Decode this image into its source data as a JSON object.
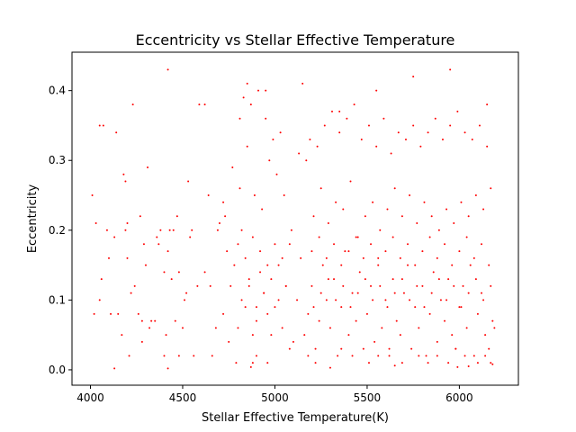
{
  "chart_data": {
    "type": "scatter",
    "title": "Eccentricity vs Stellar Effective Temperature",
    "xlabel": "Stellar Effective Temperature(K)",
    "ylabel": "Eccentricity",
    "xlim": [
      3900,
      6320
    ],
    "ylim": [
      -0.022,
      0.455
    ],
    "xticks": [
      4000,
      4500,
      5000,
      5500,
      6000
    ],
    "yticks": [
      0.0,
      0.1,
      0.2,
      0.3,
      0.4
    ],
    "xtick_labels": [
      "4000",
      "4500",
      "5000",
      "5500",
      "6000"
    ],
    "ytick_labels": [
      "0.0",
      "0.1",
      "0.2",
      "0.3",
      "0.4"
    ],
    "grid": false,
    "marker_color": "#ff0000",
    "series": [
      {
        "x": [
          4020,
          4050,
          4060,
          4090,
          4110,
          4130,
          4150,
          4170,
          4190,
          4200,
          4220,
          4240,
          4260,
          4280,
          4300,
          4320,
          4350,
          4380,
          4400,
          4410,
          4420,
          4440,
          4460,
          4480,
          4500,
          4520,
          4540,
          4560,
          4580,
          4620,
          4650,
          4680,
          4700,
          4720,
          4740,
          4760,
          4780,
          4800,
          4820,
          4840,
          4860,
          4880,
          4900,
          4920,
          4940,
          4960,
          4980,
          5000,
          5020,
          5040,
          5060,
          5080,
          5100,
          5120,
          5140,
          5160,
          5180,
          5200,
          5220,
          5240,
          5260,
          5280,
          5300,
          5320,
          5340,
          5360,
          5380,
          5400,
          5420,
          5440,
          5460,
          5480,
          5500,
          5520,
          5540,
          5560,
          5580,
          5600,
          5620,
          5640,
          5660,
          5680,
          5700,
          5720,
          5740,
          5760,
          5780,
          5800,
          5820,
          5840,
          5860,
          5880,
          5900,
          5920,
          5940,
          5960,
          5980,
          6000,
          6020,
          6040,
          6060,
          6080,
          6100,
          6120,
          6140,
          6160,
          6180,
          6190,
          4030,
          4070,
          4140,
          4180,
          4230,
          4270,
          4310,
          4360,
          4430,
          4470,
          4530,
          4590,
          4640,
          4690,
          4730,
          4770,
          4810,
          4850,
          4890,
          4930,
          4970,
          5010,
          5050,
          5090,
          5130,
          5170,
          5210,
          5250,
          5290,
          5330,
          5370,
          5410,
          5450,
          5490,
          5530,
          5570,
          5610,
          5650,
          5690,
          5730,
          5770,
          5810,
          5850,
          5890,
          5930,
          5970,
          6010,
          6050,
          6090,
          6130,
          6170,
          4810,
          4830,
          4870,
          4910,
          4950,
          4990,
          5030,
          5190,
          5230,
          5270,
          5310,
          5350,
          5390,
          5430,
          5470,
          5510,
          5550,
          5590,
          5630,
          5670,
          5710,
          5750,
          5790,
          5830,
          5870,
          5910,
          5950,
          5990,
          6030,
          6070,
          6110,
          6150,
          4800,
          4840,
          4880,
          4920,
          4960,
          5000,
          5040,
          5200,
          5240,
          5280,
          5320,
          5360,
          5400,
          5440,
          5480,
          5520,
          5560,
          5600,
          5640,
          5680,
          5720,
          5760,
          5800,
          5840,
          5880,
          5920,
          5960,
          6000,
          6040,
          6080,
          6120,
          6160,
          4820,
          4860,
          4900,
          4940,
          4980,
          5020,
          5060,
          5210,
          5250,
          5290,
          5330,
          5370,
          5410,
          5450,
          5490,
          5530,
          5570,
          5610,
          5650,
          5690,
          5730,
          5770,
          5810,
          5850,
          5890,
          5930,
          5970,
          6010,
          6050,
          6090,
          6130,
          6170,
          4010,
          4100,
          4200,
          4290,
          4370,
          4450,
          4550,
          4620,
          4720,
          4850,
          4950,
          5150,
          5350,
          5550,
          5750,
          5950,
          6150,
          4420,
          4880,
          5300,
          5650,
          5990,
          6050,
          6180,
          4420,
          4130,
          4050,
          4210,
          4190,
          4280,
          4330,
          4400,
          4480,
          4510,
          4660,
          4750,
          4790,
          4870,
          4900,
          4960,
          5080,
          5180,
          5220,
          5360,
          5420,
          5510,
          5560,
          5620,
          5690,
          5780,
          5830,
          5880,
          5940,
          5980,
          6030,
          6100,
          6140,
          6170
        ],
        "y": [
          0.08,
          0.1,
          0.13,
          0.2,
          0.08,
          0.19,
          0.08,
          0.05,
          0.2,
          0.21,
          0.11,
          0.12,
          0.08,
          0.07,
          0.15,
          0.06,
          0.07,
          0.2,
          0.14,
          0.05,
          0.17,
          0.13,
          0.07,
          0.14,
          0.06,
          0.11,
          0.19,
          0.02,
          0.12,
          0.14,
          0.12,
          0.06,
          0.21,
          0.08,
          0.17,
          0.12,
          0.15,
          0.06,
          0.2,
          0.09,
          0.13,
          0.05,
          0.07,
          0.14,
          0.11,
          0.08,
          0.05,
          0.09,
          0.15,
          0.06,
          0.12,
          0.18,
          0.04,
          0.1,
          0.16,
          0.05,
          0.08,
          0.12,
          0.03,
          0.07,
          0.15,
          0.1,
          0.06,
          0.13,
          0.02,
          0.09,
          0.17,
          0.05,
          0.11,
          0.07,
          0.14,
          0.03,
          0.08,
          0.12,
          0.04,
          0.16,
          0.06,
          0.1,
          0.02,
          0.13,
          0.07,
          0.05,
          0.11,
          0.15,
          0.03,
          0.09,
          0.06,
          0.12,
          0.02,
          0.08,
          0.14,
          0.04,
          0.1,
          0.07,
          0.13,
          0.05,
          0.03,
          0.09,
          0.12,
          0.06,
          0.15,
          0.02,
          0.08,
          0.11,
          0.05,
          0.03,
          0.07,
          0.06,
          0.21,
          0.35,
          0.34,
          0.28,
          0.38,
          0.22,
          0.29,
          0.19,
          0.2,
          0.22,
          0.27,
          0.38,
          0.25,
          0.2,
          0.22,
          0.29,
          0.26,
          0.32,
          0.25,
          0.23,
          0.3,
          0.28,
          0.25,
          0.2,
          0.31,
          0.3,
          0.22,
          0.26,
          0.21,
          0.24,
          0.23,
          0.27,
          0.19,
          0.22,
          0.24,
          0.2,
          0.23,
          0.26,
          0.22,
          0.25,
          0.21,
          0.24,
          0.22,
          0.2,
          0.23,
          0.21,
          0.24,
          0.22,
          0.25,
          0.23,
          0.26,
          0.36,
          0.39,
          0.38,
          0.4,
          0.36,
          0.33,
          0.34,
          0.33,
          0.32,
          0.35,
          0.37,
          0.34,
          0.36,
          0.38,
          0.33,
          0.35,
          0.32,
          0.36,
          0.31,
          0.34,
          0.33,
          0.35,
          0.32,
          0.34,
          0.36,
          0.33,
          0.35,
          0.37,
          0.34,
          0.33,
          0.35,
          0.32,
          0.18,
          0.16,
          0.19,
          0.17,
          0.15,
          0.18,
          0.16,
          0.17,
          0.19,
          0.16,
          0.18,
          0.15,
          0.17,
          0.19,
          0.16,
          0.18,
          0.15,
          0.17,
          0.19,
          0.16,
          0.18,
          0.15,
          0.17,
          0.19,
          0.16,
          0.18,
          0.15,
          0.17,
          0.19,
          0.16,
          0.18,
          0.15,
          0.1,
          0.12,
          0.09,
          0.11,
          0.13,
          0.1,
          0.12,
          0.09,
          0.11,
          0.13,
          0.1,
          0.12,
          0.09,
          0.11,
          0.13,
          0.1,
          0.12,
          0.09,
          0.11,
          0.13,
          0.1,
          0.12,
          0.09,
          0.11,
          0.13,
          0.1,
          0.12,
          0.09,
          0.11,
          0.13,
          0.1,
          0.12,
          0.25,
          0.16,
          0.16,
          0.18,
          0.18,
          0.2,
          0.2,
          0.38,
          0.24,
          0.41,
          0.4,
          0.41,
          0.37,
          0.4,
          0.42,
          0.43,
          0.38,
          0.002,
          0.01,
          0.003,
          0.006,
          0.004,
          0.005,
          0.008,
          0.43,
          0.002,
          0.35,
          0.02,
          0.27,
          0.04,
          0.07,
          0.02,
          0.02,
          0.1,
          0.02,
          0.04,
          0.01,
          0.004,
          0.02,
          0.01,
          0.03,
          0.02,
          0.01,
          0.03,
          0.02,
          0.01,
          0.02,
          0.03,
          0.01,
          0.02,
          0.01,
          0.02,
          0.01,
          0.03,
          0.02,
          0.01,
          0.02,
          0.01
        ]
      }
    ]
  }
}
